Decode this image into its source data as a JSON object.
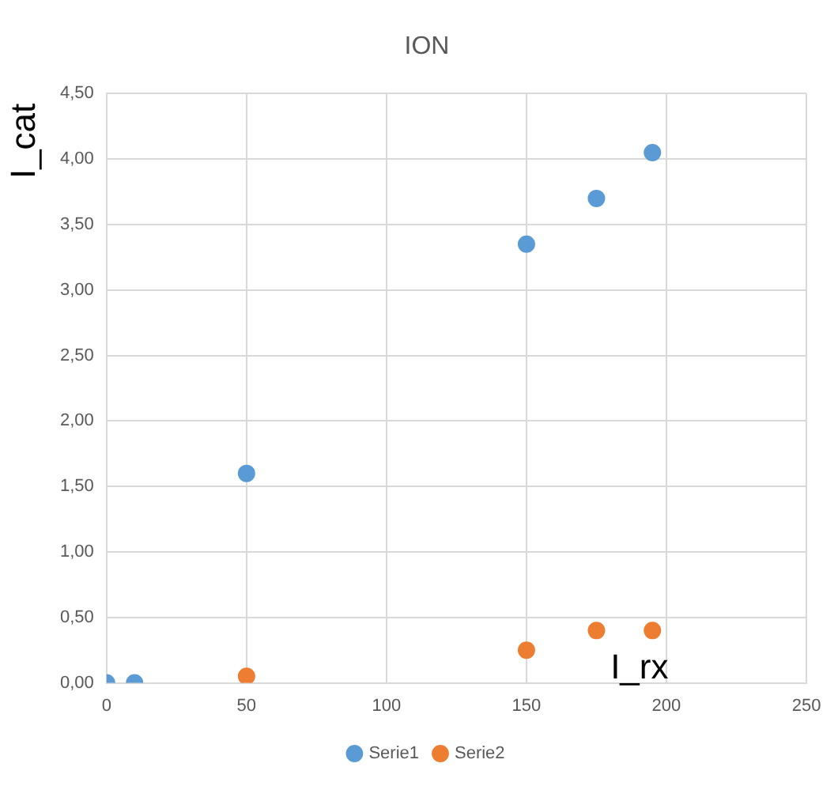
{
  "chart_data": {
    "type": "scatter",
    "title": "ION",
    "xlabel": "I_rx",
    "ylabel": "I_cat",
    "xlim": [
      0,
      250
    ],
    "xticks": [
      0,
      50,
      100,
      150,
      200,
      250
    ],
    "ylim": [
      0,
      4.5
    ],
    "yticks": [
      {
        "value": 0,
        "label": "0,00"
      },
      {
        "value": 0.5,
        "label": "0,50"
      },
      {
        "value": 1,
        "label": "1,00"
      },
      {
        "value": 1.5,
        "label": "1,50"
      },
      {
        "value": 2,
        "label": "2,00"
      },
      {
        "value": 2.5,
        "label": "2,50"
      },
      {
        "value": 3,
        "label": "3,00"
      },
      {
        "value": 3.5,
        "label": "3,50"
      },
      {
        "value": 4,
        "label": "4,00"
      },
      {
        "value": 4.5,
        "label": "4,50"
      }
    ],
    "grid": true,
    "legend": "bottom",
    "marker": "circle",
    "series": [
      {
        "name": "Serie1",
        "color": "#5b9bd5",
        "x": [
          0,
          10,
          50,
          150,
          175,
          195
        ],
        "values": [
          0,
          0,
          1.6,
          3.35,
          3.7,
          4.05
        ]
      },
      {
        "name": "Serie2",
        "color": "#ed7d31",
        "x": [
          50,
          150,
          175,
          195
        ],
        "values": [
          0.05,
          0.25,
          0.4,
          0.4
        ]
      }
    ]
  }
}
